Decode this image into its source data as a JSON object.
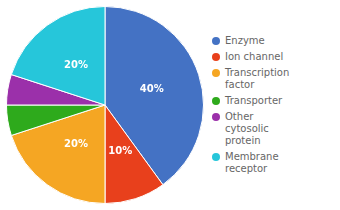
{
  "chart_data": {
    "type": "pie",
    "categories": [
      "Enzyme",
      "Ion channel",
      "Transcription\nfactor",
      "Transporter",
      "Other\ncytosolic\nprotein",
      "Membrane\nreceptor"
    ],
    "values": [
      40,
      10,
      20,
      5,
      5,
      20
    ],
    "value_labels": [
      "40%",
      "10%",
      "20%",
      null,
      null,
      "20%"
    ],
    "data_labels": true,
    "colors": [
      "#4472C4",
      "#E8401C",
      "#F5A623",
      "#2EAA1C",
      "#9B30AA",
      "#26C6DA"
    ],
    "legend": "right"
  }
}
